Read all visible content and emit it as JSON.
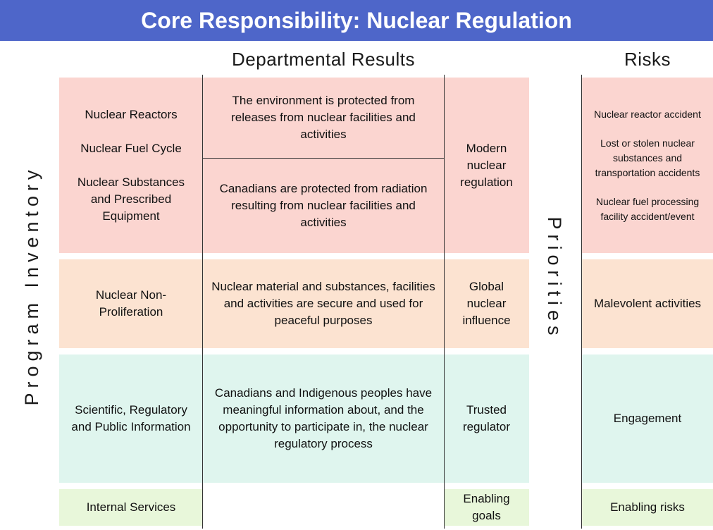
{
  "title": "Core Responsibility: Nuclear Regulation",
  "headings": {
    "departmental_results": "Departmental Results",
    "risks": "Risks",
    "program_inventory": "Program Inventory",
    "priorities": "Priorities"
  },
  "rows": {
    "regulation": {
      "programs": [
        "Nuclear Reactors",
        "Nuclear Fuel Cycle",
        "Nuclear Substances and Prescribed Equipment"
      ],
      "results": [
        "The environment is protected from releases from nuclear facilities and activities",
        "Canadians are protected from radiation resulting from nuclear facilities and activities"
      ],
      "priority": "Modern nuclear regulation",
      "risks": [
        "Nuclear reactor accident",
        "Lost or stolen nuclear substances and transportation accidents",
        "Nuclear fuel processing facility accident/event"
      ]
    },
    "nonproliferation": {
      "program": "Nuclear Non-Proliferation",
      "result": "Nuclear material and substances, facilities and activities are secure and used for peaceful purposes",
      "priority": "Global nuclear influence",
      "risk": "Malevolent activities"
    },
    "information": {
      "program": "Scientific, Regulatory and Public Information",
      "result": "Canadians and Indigenous peoples have meaningful information about, and the opportunity to participate in, the nuclear regulatory process",
      "priority": "Trusted regulator",
      "risk": "Engagement"
    },
    "internal": {
      "program": "Internal Services",
      "priority": "Enabling goals",
      "risk": "Enabling risks"
    }
  },
  "colors": {
    "title_bar": "#4e66c9",
    "regulation_row": "#fbd5d0",
    "nonproliferation_row": "#fce3d1",
    "information_row": "#dff5ee",
    "internal_row": "#e8f7da"
  }
}
